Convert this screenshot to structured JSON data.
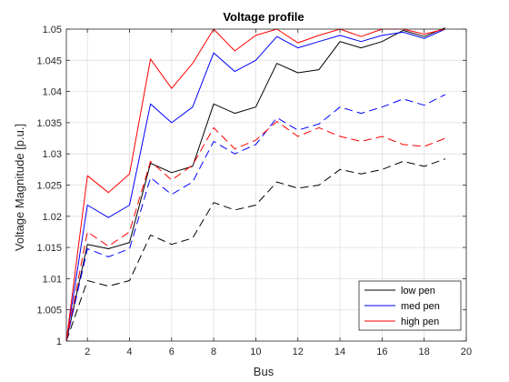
{
  "chart_data": {
    "type": "line",
    "title": "Voltage profile",
    "xlabel": "Bus",
    "ylabel": "Voltage Magnitude [p.u.]",
    "xlim": [
      1,
      20
    ],
    "ylim": [
      1,
      1.05
    ],
    "grid": true,
    "legend_position": "bottom-right",
    "x_ticks": [
      "2",
      "4",
      "6",
      "8",
      "10",
      "12",
      "14",
      "16",
      "18",
      "20"
    ],
    "x_tick_values": [
      2,
      4,
      6,
      8,
      10,
      12,
      14,
      16,
      18,
      20
    ],
    "y_ticks": [
      "1",
      "1.005",
      "1.01",
      "1.015",
      "1.02",
      "1.025",
      "1.03",
      "1.035",
      "1.04",
      "1.045",
      "1.05"
    ],
    "y_tick_values": [
      1,
      1.005,
      1.01,
      1.015,
      1.02,
      1.025,
      1.03,
      1.035,
      1.04,
      1.045,
      1.05
    ],
    "x": [
      1,
      2,
      3,
      4,
      5,
      6,
      7,
      8,
      9,
      10,
      11,
      12,
      13,
      14,
      15,
      16,
      17,
      18,
      19
    ],
    "legend": [
      "low pen",
      "med pen",
      "high pen"
    ],
    "series": [
      {
        "name": "low pen",
        "style": "solid",
        "color": "#000000",
        "values": [
          1.0,
          1.0155,
          1.0148,
          1.0158,
          1.0285,
          1.027,
          1.028,
          1.038,
          1.0365,
          1.0375,
          1.0445,
          1.043,
          1.0435,
          1.048,
          1.047,
          1.048,
          1.0498,
          1.0488,
          1.0502
        ]
      },
      {
        "name": "med pen",
        "style": "solid",
        "color": "#0000ff",
        "values": [
          1.0,
          1.0218,
          1.0198,
          1.0218,
          1.038,
          1.035,
          1.0375,
          1.0462,
          1.0432,
          1.045,
          1.0488,
          1.047,
          1.048,
          1.049,
          1.048,
          1.049,
          1.0495,
          1.0485,
          1.05
        ]
      },
      {
        "name": "high pen",
        "style": "solid",
        "color": "#ff0000",
        "values": [
          1.0,
          1.0265,
          1.0238,
          1.0268,
          1.0452,
          1.0405,
          1.0445,
          1.05,
          1.0465,
          1.049,
          1.05,
          1.0478,
          1.049,
          1.05,
          1.0488,
          1.05,
          1.05,
          1.0492,
          1.05
        ]
      },
      {
        "name": "low pen",
        "style": "dashed",
        "color": "#000000",
        "values": [
          1.0,
          1.0097,
          1.0088,
          1.0097,
          1.017,
          1.0155,
          1.0165,
          1.0222,
          1.021,
          1.0218,
          1.0255,
          1.0245,
          1.025,
          1.0275,
          1.0268,
          1.0275,
          1.0288,
          1.028,
          1.0292
        ]
      },
      {
        "name": "med pen",
        "style": "dashed",
        "color": "#0000ff",
        "values": [
          1.0,
          1.0148,
          1.0135,
          1.0148,
          1.0262,
          1.0235,
          1.0255,
          1.032,
          1.03,
          1.0315,
          1.0358,
          1.0338,
          1.0348,
          1.0375,
          1.0365,
          1.0375,
          1.0388,
          1.0378,
          1.0395
        ]
      },
      {
        "name": "high pen",
        "style": "dashed",
        "color": "#ff0000",
        "values": [
          1.0,
          1.0175,
          1.0152,
          1.0175,
          1.0288,
          1.0258,
          1.0282,
          1.0342,
          1.0308,
          1.0322,
          1.0352,
          1.0328,
          1.0342,
          1.0328,
          1.032,
          1.0328,
          1.0315,
          1.0312,
          1.0325
        ]
      }
    ]
  }
}
